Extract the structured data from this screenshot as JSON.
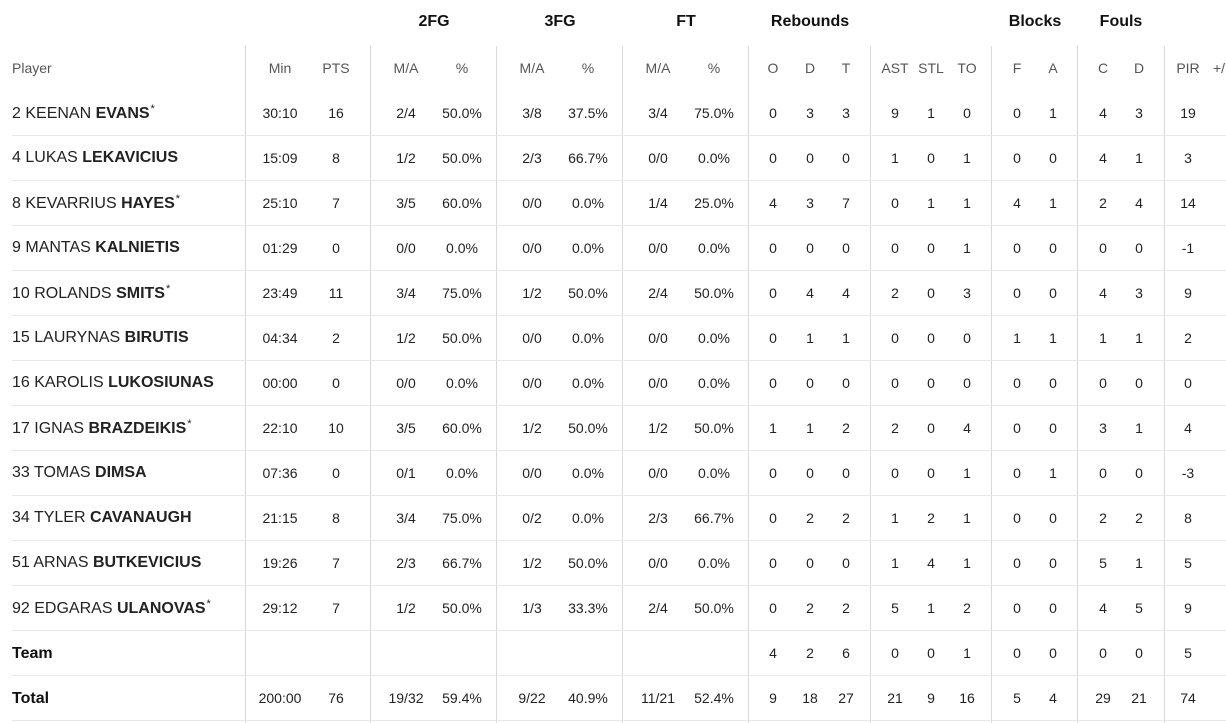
{
  "group_headers": {
    "fg2": "2FG",
    "fg3": "3FG",
    "ft": "FT",
    "rebounds": "Rebounds",
    "blocks": "Blocks",
    "fouls": "Fouls"
  },
  "columns": [
    "Player",
    "Min",
    "PTS",
    "M/A",
    "%",
    "M/A",
    "%",
    "M/A",
    "%",
    "O",
    "D",
    "T",
    "AST",
    "STL",
    "TO",
    "F",
    "A",
    "C",
    "D",
    "PIR",
    "+/"
  ],
  "players": [
    {
      "number": "2",
      "first": "KEENAN",
      "last": "EVANS",
      "starter": true,
      "min": "30:10",
      "pts": "16",
      "fg2": "2/4",
      "fg2p": "50.0%",
      "fg3": "3/8",
      "fg3p": "37.5%",
      "ft": "3/4",
      "ftp": "75.0%",
      "o": "0",
      "d": "3",
      "t": "3",
      "ast": "9",
      "stl": "1",
      "to": "0",
      "bf": "0",
      "ba": "1",
      "fc": "4",
      "fd": "3",
      "pir": "19"
    },
    {
      "number": "4",
      "first": "LUKAS",
      "last": "LEKAVICIUS",
      "starter": false,
      "min": "15:09",
      "pts": "8",
      "fg2": "1/2",
      "fg2p": "50.0%",
      "fg3": "2/3",
      "fg3p": "66.7%",
      "ft": "0/0",
      "ftp": "0.0%",
      "o": "0",
      "d": "0",
      "t": "0",
      "ast": "1",
      "stl": "0",
      "to": "1",
      "bf": "0",
      "ba": "0",
      "fc": "4",
      "fd": "1",
      "pir": "3"
    },
    {
      "number": "8",
      "first": "KEVARRIUS",
      "last": "HAYES",
      "starter": true,
      "min": "25:10",
      "pts": "7",
      "fg2": "3/5",
      "fg2p": "60.0%",
      "fg3": "0/0",
      "fg3p": "0.0%",
      "ft": "1/4",
      "ftp": "25.0%",
      "o": "4",
      "d": "3",
      "t": "7",
      "ast": "0",
      "stl": "1",
      "to": "1",
      "bf": "4",
      "ba": "1",
      "fc": "2",
      "fd": "4",
      "pir": "14"
    },
    {
      "number": "9",
      "first": "MANTAS",
      "last": "KALNIETIS",
      "starter": false,
      "min": "01:29",
      "pts": "0",
      "fg2": "0/0",
      "fg2p": "0.0%",
      "fg3": "0/0",
      "fg3p": "0.0%",
      "ft": "0/0",
      "ftp": "0.0%",
      "o": "0",
      "d": "0",
      "t": "0",
      "ast": "0",
      "stl": "0",
      "to": "1",
      "bf": "0",
      "ba": "0",
      "fc": "0",
      "fd": "0",
      "pir": "-1"
    },
    {
      "number": "10",
      "first": "ROLANDS",
      "last": "SMITS",
      "starter": true,
      "min": "23:49",
      "pts": "11",
      "fg2": "3/4",
      "fg2p": "75.0%",
      "fg3": "1/2",
      "fg3p": "50.0%",
      "ft": "2/4",
      "ftp": "50.0%",
      "o": "0",
      "d": "4",
      "t": "4",
      "ast": "2",
      "stl": "0",
      "to": "3",
      "bf": "0",
      "ba": "0",
      "fc": "4",
      "fd": "3",
      "pir": "9"
    },
    {
      "number": "15",
      "first": "LAURYNAS",
      "last": "BIRUTIS",
      "starter": false,
      "min": "04:34",
      "pts": "2",
      "fg2": "1/2",
      "fg2p": "50.0%",
      "fg3": "0/0",
      "fg3p": "0.0%",
      "ft": "0/0",
      "ftp": "0.0%",
      "o": "0",
      "d": "1",
      "t": "1",
      "ast": "0",
      "stl": "0",
      "to": "0",
      "bf": "1",
      "ba": "1",
      "fc": "1",
      "fd": "1",
      "pir": "2"
    },
    {
      "number": "16",
      "first": "KAROLIS",
      "last": "LUKOSIUNAS",
      "starter": false,
      "min": "00:00",
      "pts": "0",
      "fg2": "0/0",
      "fg2p": "0.0%",
      "fg3": "0/0",
      "fg3p": "0.0%",
      "ft": "0/0",
      "ftp": "0.0%",
      "o": "0",
      "d": "0",
      "t": "0",
      "ast": "0",
      "stl": "0",
      "to": "0",
      "bf": "0",
      "ba": "0",
      "fc": "0",
      "fd": "0",
      "pir": "0"
    },
    {
      "number": "17",
      "first": "IGNAS",
      "last": "BRAZDEIKIS",
      "starter": true,
      "min": "22:10",
      "pts": "10",
      "fg2": "3/5",
      "fg2p": "60.0%",
      "fg3": "1/2",
      "fg3p": "50.0%",
      "ft": "1/2",
      "ftp": "50.0%",
      "o": "1",
      "d": "1",
      "t": "2",
      "ast": "2",
      "stl": "0",
      "to": "4",
      "bf": "0",
      "ba": "0",
      "fc": "3",
      "fd": "1",
      "pir": "4"
    },
    {
      "number": "33",
      "first": "TOMAS",
      "last": "DIMSA",
      "starter": false,
      "min": "07:36",
      "pts": "0",
      "fg2": "0/1",
      "fg2p": "0.0%",
      "fg3": "0/0",
      "fg3p": "0.0%",
      "ft": "0/0",
      "ftp": "0.0%",
      "o": "0",
      "d": "0",
      "t": "0",
      "ast": "0",
      "stl": "0",
      "to": "1",
      "bf": "0",
      "ba": "1",
      "fc": "0",
      "fd": "0",
      "pir": "-3"
    },
    {
      "number": "34",
      "first": "TYLER",
      "last": "CAVANAUGH",
      "starter": false,
      "min": "21:15",
      "pts": "8",
      "fg2": "3/4",
      "fg2p": "75.0%",
      "fg3": "0/2",
      "fg3p": "0.0%",
      "ft": "2/3",
      "ftp": "66.7%",
      "o": "0",
      "d": "2",
      "t": "2",
      "ast": "1",
      "stl": "2",
      "to": "1",
      "bf": "0",
      "ba": "0",
      "fc": "2",
      "fd": "2",
      "pir": "8"
    },
    {
      "number": "51",
      "first": "ARNAS",
      "last": "BUTKEVICIUS",
      "starter": false,
      "min": "19:26",
      "pts": "7",
      "fg2": "2/3",
      "fg2p": "66.7%",
      "fg3": "1/2",
      "fg3p": "50.0%",
      "ft": "0/0",
      "ftp": "0.0%",
      "o": "0",
      "d": "0",
      "t": "0",
      "ast": "1",
      "stl": "4",
      "to": "1",
      "bf": "0",
      "ba": "0",
      "fc": "5",
      "fd": "1",
      "pir": "5"
    },
    {
      "number": "92",
      "first": "EDGARAS",
      "last": "ULANOVAS",
      "starter": true,
      "min": "29:12",
      "pts": "7",
      "fg2": "1/2",
      "fg2p": "50.0%",
      "fg3": "1/3",
      "fg3p": "33.3%",
      "ft": "2/4",
      "ftp": "50.0%",
      "o": "0",
      "d": "2",
      "t": "2",
      "ast": "5",
      "stl": "1",
      "to": "2",
      "bf": "0",
      "ba": "0",
      "fc": "4",
      "fd": "5",
      "pir": "9"
    }
  ],
  "team_row": {
    "label": "Team",
    "min": "",
    "pts": "",
    "fg2": "",
    "fg2p": "",
    "fg3": "",
    "fg3p": "",
    "ft": "",
    "ftp": "",
    "o": "4",
    "d": "2",
    "t": "6",
    "ast": "0",
    "stl": "0",
    "to": "1",
    "bf": "0",
    "ba": "0",
    "fc": "0",
    "fd": "0",
    "pir": "5"
  },
  "total_row": {
    "label": "Total",
    "min": "200:00",
    "pts": "76",
    "fg2": "19/32",
    "fg2p": "59.4%",
    "fg3": "9/22",
    "fg3p": "40.9%",
    "ft": "11/21",
    "ftp": "52.4%",
    "o": "9",
    "d": "18",
    "t": "27",
    "ast": "21",
    "stl": "9",
    "to": "16",
    "bf": "5",
    "ba": "4",
    "fc": "29",
    "fd": "21",
    "pir": "74"
  },
  "starter_marker": "*"
}
